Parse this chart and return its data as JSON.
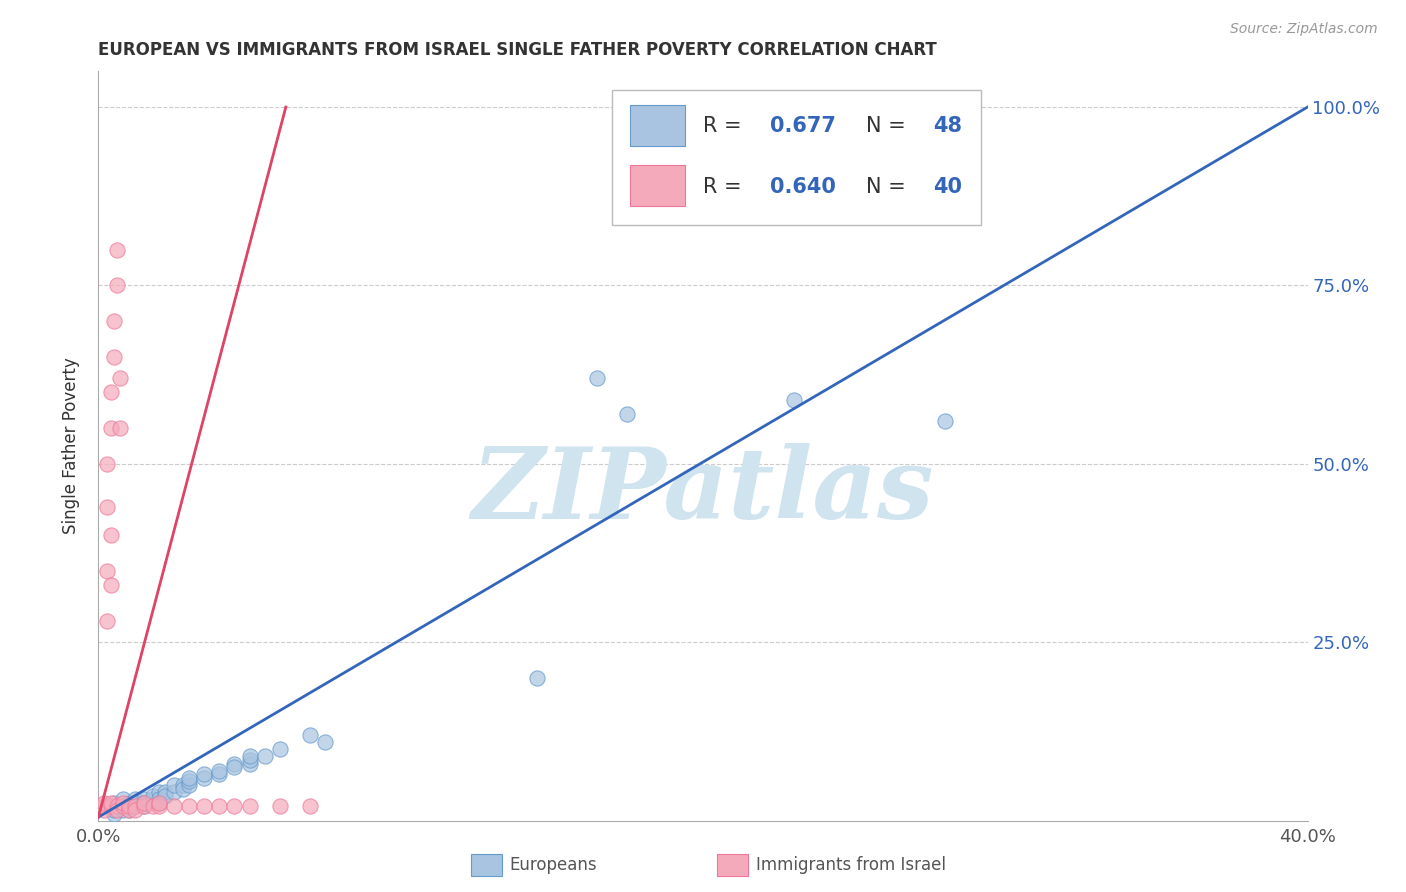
{
  "title": "EUROPEAN VS IMMIGRANTS FROM ISRAEL SINGLE FATHER POVERTY CORRELATION CHART",
  "source": "Source: ZipAtlas.com",
  "ylabel": "Single Father Poverty",
  "xlim": [
    0.0,
    0.4
  ],
  "ylim": [
    0.0,
    1.05
  ],
  "xtick_pos": [
    0.0,
    0.1,
    0.2,
    0.3,
    0.4
  ],
  "xtick_labels": [
    "0.0%",
    "",
    "",
    "",
    "40.0%"
  ],
  "ytick_vals": [
    0.0,
    0.25,
    0.5,
    0.75,
    1.0
  ],
  "ytick_labels": [
    "",
    "25.0%",
    "50.0%",
    "75.0%",
    "100.0%"
  ],
  "blue_R": 0.677,
  "blue_N": 48,
  "pink_R": 0.64,
  "pink_N": 40,
  "blue_color": "#A8C4E0",
  "pink_color": "#F4AABB",
  "blue_edge_color": "#6699CC",
  "pink_edge_color": "#EE7799",
  "blue_line_color": "#3366BB",
  "pink_line_color": "#DD4466",
  "watermark": "ZIPatlas",
  "watermark_color": "#D0E4F0",
  "legend_R_N_color": "#3366BB",
  "dot_size": 120,
  "blue_scatter": [
    [
      0.005,
      0.01
    ],
    [
      0.005,
      0.02
    ],
    [
      0.005,
      0.015
    ],
    [
      0.005,
      0.025
    ],
    [
      0.008,
      0.02
    ],
    [
      0.008,
      0.015
    ],
    [
      0.008,
      0.03
    ],
    [
      0.01,
      0.02
    ],
    [
      0.01,
      0.025
    ],
    [
      0.01,
      0.015
    ],
    [
      0.012,
      0.02
    ],
    [
      0.012,
      0.03
    ],
    [
      0.012,
      0.025
    ],
    [
      0.015,
      0.03
    ],
    [
      0.015,
      0.025
    ],
    [
      0.015,
      0.02
    ],
    [
      0.018,
      0.03
    ],
    [
      0.018,
      0.035
    ],
    [
      0.02,
      0.04
    ],
    [
      0.02,
      0.03
    ],
    [
      0.02,
      0.025
    ],
    [
      0.022,
      0.04
    ],
    [
      0.022,
      0.035
    ],
    [
      0.025,
      0.04
    ],
    [
      0.025,
      0.05
    ],
    [
      0.028,
      0.05
    ],
    [
      0.028,
      0.045
    ],
    [
      0.03,
      0.05
    ],
    [
      0.03,
      0.055
    ],
    [
      0.03,
      0.06
    ],
    [
      0.035,
      0.06
    ],
    [
      0.035,
      0.065
    ],
    [
      0.04,
      0.065
    ],
    [
      0.04,
      0.07
    ],
    [
      0.045,
      0.08
    ],
    [
      0.045,
      0.075
    ],
    [
      0.05,
      0.08
    ],
    [
      0.05,
      0.085
    ],
    [
      0.05,
      0.09
    ],
    [
      0.055,
      0.09
    ],
    [
      0.06,
      0.1
    ],
    [
      0.07,
      0.12
    ],
    [
      0.075,
      0.11
    ],
    [
      0.145,
      0.2
    ],
    [
      0.165,
      0.62
    ],
    [
      0.175,
      0.57
    ],
    [
      0.23,
      0.59
    ],
    [
      0.28,
      0.56
    ]
  ],
  "pink_scatter": [
    [
      0.002,
      0.02
    ],
    [
      0.002,
      0.015
    ],
    [
      0.002,
      0.025
    ],
    [
      0.004,
      0.02
    ],
    [
      0.004,
      0.025
    ],
    [
      0.006,
      0.02
    ],
    [
      0.006,
      0.015
    ],
    [
      0.008,
      0.02
    ],
    [
      0.008,
      0.025
    ],
    [
      0.01,
      0.015
    ],
    [
      0.01,
      0.02
    ],
    [
      0.012,
      0.02
    ],
    [
      0.012,
      0.015
    ],
    [
      0.015,
      0.02
    ],
    [
      0.015,
      0.025
    ],
    [
      0.018,
      0.02
    ],
    [
      0.02,
      0.02
    ],
    [
      0.02,
      0.025
    ],
    [
      0.025,
      0.02
    ],
    [
      0.03,
      0.02
    ],
    [
      0.035,
      0.02
    ],
    [
      0.04,
      0.02
    ],
    [
      0.045,
      0.02
    ],
    [
      0.05,
      0.02
    ],
    [
      0.06,
      0.02
    ],
    [
      0.07,
      0.02
    ],
    [
      0.003,
      0.44
    ],
    [
      0.003,
      0.5
    ],
    [
      0.004,
      0.55
    ],
    [
      0.004,
      0.6
    ],
    [
      0.005,
      0.65
    ],
    [
      0.005,
      0.7
    ],
    [
      0.006,
      0.75
    ],
    [
      0.006,
      0.8
    ],
    [
      0.007,
      0.55
    ],
    [
      0.007,
      0.62
    ],
    [
      0.003,
      0.35
    ],
    [
      0.004,
      0.4
    ],
    [
      0.003,
      0.28
    ],
    [
      0.004,
      0.33
    ]
  ],
  "blue_line_x": [
    0.0,
    0.4
  ],
  "blue_line_y": [
    0.005,
    1.0
  ],
  "pink_line_x": [
    0.0,
    0.062
  ],
  "pink_line_y": [
    0.005,
    1.0
  ]
}
